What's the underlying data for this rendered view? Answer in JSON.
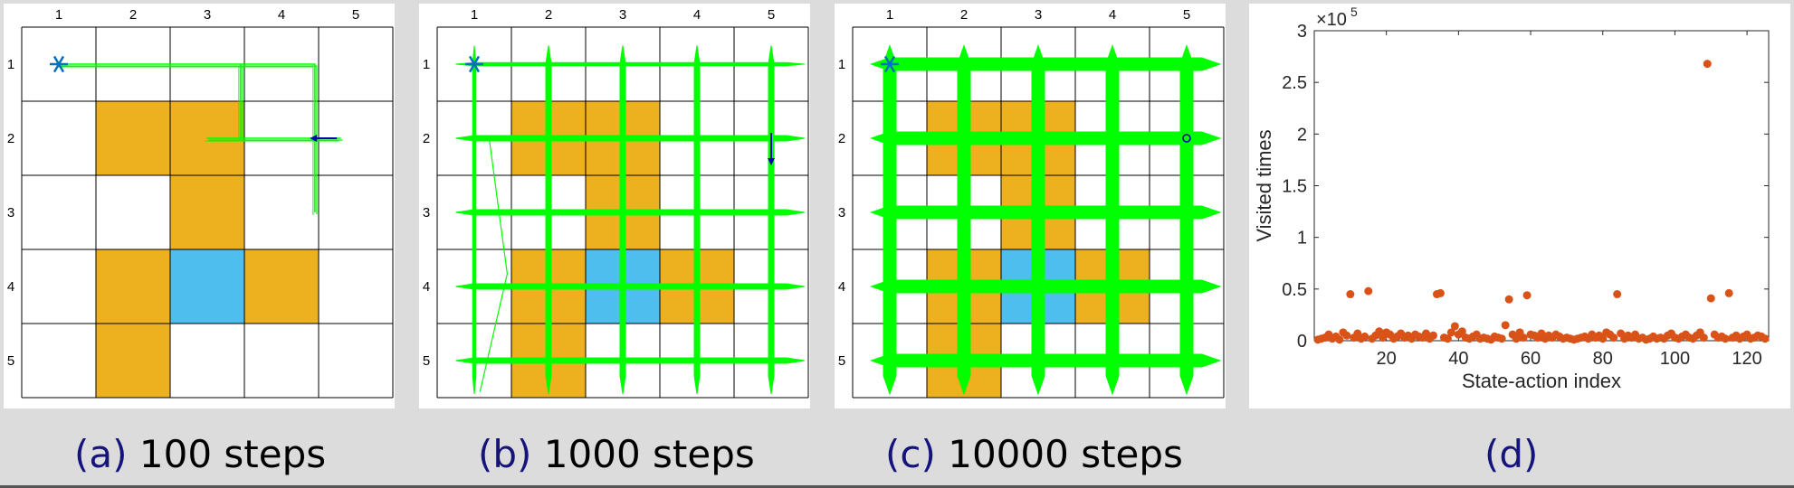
{
  "panels": [
    {
      "id": "a",
      "caption": {
        "label": "(a)",
        "text": "100 steps"
      },
      "col_labels": [
        "1",
        "2",
        "3",
        "4",
        "5"
      ],
      "row_labels": [
        "1",
        "2",
        "3",
        "4",
        "5"
      ],
      "forbidden_cells": [
        [
          2,
          2
        ],
        [
          2,
          3
        ],
        [
          3,
          3
        ],
        [
          4,
          2
        ],
        [
          4,
          4
        ],
        [
          5,
          2
        ]
      ],
      "target_cells": [
        [
          4,
          3
        ]
      ],
      "start_cell": [
        1,
        1
      ],
      "trajectory_density": "sparse"
    },
    {
      "id": "b",
      "caption": {
        "label": "(b)",
        "text": "1000 steps"
      },
      "col_labels": [
        "1",
        "2",
        "3",
        "4",
        "5"
      ],
      "row_labels": [
        "1",
        "2",
        "3",
        "4",
        "5"
      ],
      "forbidden_cells": [
        [
          2,
          2
        ],
        [
          2,
          3
        ],
        [
          3,
          3
        ],
        [
          4,
          2
        ],
        [
          4,
          4
        ],
        [
          5,
          2
        ]
      ],
      "target_cells": [
        [
          4,
          3
        ]
      ],
      "start_cell": [
        1,
        1
      ],
      "trajectory_density": "medium"
    },
    {
      "id": "c",
      "caption": {
        "label": "(c)",
        "text": "10000 steps"
      },
      "col_labels": [
        "1",
        "2",
        "3",
        "4",
        "5"
      ],
      "row_labels": [
        "1",
        "2",
        "3",
        "4",
        "5"
      ],
      "forbidden_cells": [
        [
          2,
          2
        ],
        [
          2,
          3
        ],
        [
          3,
          3
        ],
        [
          4,
          2
        ],
        [
          4,
          4
        ],
        [
          5,
          2
        ]
      ],
      "target_cells": [
        [
          4,
          3
        ]
      ],
      "start_cell": [
        1,
        1
      ],
      "trajectory_density": "dense"
    }
  ],
  "panel_d": {
    "caption": {
      "label": "(d)"
    }
  },
  "colors": {
    "forbidden": "#edb120",
    "target": "#4dbeee",
    "trajectory": "#00ff00",
    "start_marker": "#0072bd",
    "arrow": "#0000aa",
    "scatter": "#d95319"
  },
  "chart_data": {
    "type": "scatter",
    "xlabel": "State-action index",
    "ylabel": "Visited times",
    "y_exponent": "×10^5",
    "xlim": [
      0,
      126
    ],
    "ylim": [
      0,
      300000
    ],
    "x_ticks": [
      20,
      40,
      60,
      80,
      100,
      120
    ],
    "x_tick_labels": [
      "20",
      "40",
      "60",
      "80",
      "100",
      "120"
    ],
    "y_ticks": [
      0,
      50000,
      100000,
      150000,
      200000,
      250000,
      300000
    ],
    "y_tick_labels": [
      "0",
      "0.5",
      "1",
      "1.5",
      "2",
      "2.5",
      "3"
    ],
    "exponent_label": "×10",
    "exponent_power": "5",
    "series": [
      {
        "x": [
          1,
          2,
          3,
          4,
          5,
          6,
          7,
          8,
          9,
          10,
          11,
          12,
          13,
          14,
          15,
          16,
          17,
          18,
          19,
          20,
          21,
          22,
          23,
          24,
          25,
          26,
          27,
          28,
          29,
          30,
          31,
          32,
          33,
          34,
          35,
          36,
          37,
          38,
          39,
          40,
          41,
          42,
          43,
          44,
          45,
          46,
          47,
          48,
          49,
          50,
          51,
          52,
          53,
          54,
          55,
          56,
          57,
          58,
          59,
          60,
          61,
          62,
          63,
          64,
          65,
          66,
          67,
          68,
          69,
          70,
          71,
          72,
          73,
          74,
          75,
          76,
          77,
          78,
          79,
          80,
          81,
          82,
          83,
          84,
          85,
          86,
          87,
          88,
          89,
          90,
          91,
          92,
          93,
          94,
          95,
          96,
          97,
          98,
          99,
          100,
          101,
          102,
          103,
          104,
          105,
          106,
          107,
          108,
          109,
          110,
          111,
          112,
          113,
          114,
          115,
          116,
          117,
          118,
          119,
          120,
          121,
          122,
          123,
          124,
          125
        ],
        "values": [
          1000,
          2000,
          3000,
          6000,
          2000,
          4000,
          1000,
          8000,
          5000,
          45000,
          3000,
          7000,
          2000,
          4000,
          48000,
          2000,
          5000,
          9000,
          3000,
          8000,
          6000,
          2000,
          4000,
          7000,
          3000,
          5000,
          2000,
          6000,
          4000,
          3000,
          7000,
          2000,
          5000,
          45000,
          46000,
          3000,
          2000,
          8000,
          14000,
          6000,
          9000,
          3000,
          2000,
          4000,
          6000,
          2000,
          3000,
          2000,
          1000,
          4000,
          3000,
          2000,
          15000,
          40000,
          6000,
          2000,
          8000,
          3000,
          44000,
          6000,
          5000,
          3000,
          7000,
          2000,
          5000,
          3000,
          6000,
          4000,
          2000,
          3000,
          2000,
          1000,
          2000,
          3000,
          4000,
          2000,
          6000,
          3000,
          5000,
          2000,
          8000,
          6000,
          3000,
          45000,
          7000,
          2000,
          5000,
          3000,
          6000,
          2000,
          3000,
          1000,
          2000,
          4000,
          2000,
          3000,
          2000,
          5000,
          7000,
          3000,
          2000,
          4000,
          6000,
          3000,
          2000,
          5000,
          8000,
          3000,
          268000,
          41000,
          6000,
          3000,
          4000,
          2000,
          46000,
          3000,
          5000,
          2000,
          4000,
          6000,
          2000,
          3000,
          5000,
          4000,
          2000
        ]
      }
    ]
  }
}
